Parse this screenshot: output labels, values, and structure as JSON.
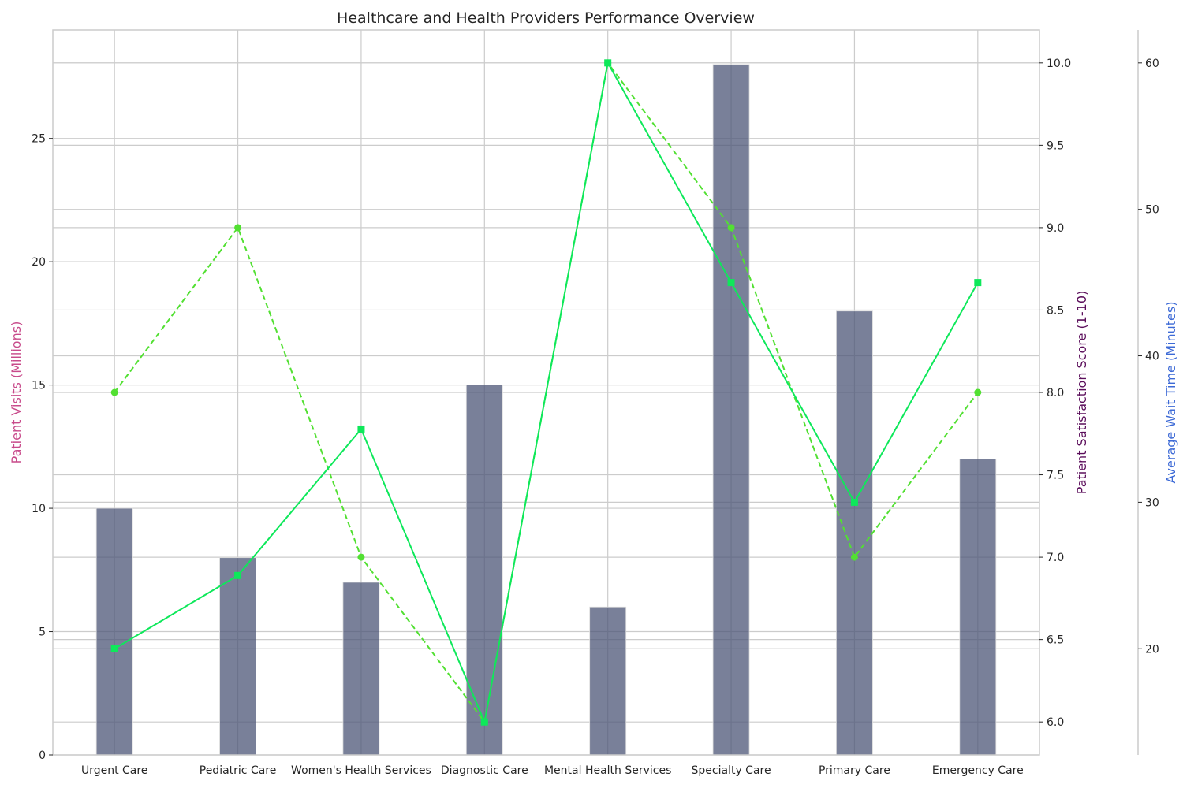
{
  "chart_data": {
    "type": "bar",
    "title": "Healthcare and Health Providers Performance Overview",
    "categories": [
      "Urgent Care",
      "Pediatric Care",
      "Women's Health Services",
      "Diagnostic Care",
      "Mental Health Services",
      "Specialty Care",
      "Primary Care",
      "Emergency Care"
    ],
    "series": [
      {
        "name": "Patient Visits (Millions)",
        "type": "bar",
        "axis": "left",
        "values": [
          10,
          8,
          7,
          15,
          6,
          28,
          18,
          12
        ],
        "color": "#4c5577"
      },
      {
        "name": "Patient Satisfaction Score (1-10)",
        "type": "line",
        "style": "dashed",
        "marker": "circle",
        "axis": "right",
        "values": [
          8.0,
          9.0,
          7.0,
          6.0,
          10.0,
          9.0,
          7.0,
          8.0
        ],
        "color": "#52e032"
      },
      {
        "name": "Average Wait Time (Minutes)",
        "type": "line",
        "style": "solid",
        "marker": "square",
        "axis": "right2",
        "values": [
          20,
          25,
          35,
          15,
          60,
          45,
          30,
          45
        ],
        "color": "#0ee85a"
      }
    ],
    "axes": {
      "left": {
        "label": "Patient Visits (Millions)",
        "range": [
          0,
          29.4
        ],
        "ticks": [
          0,
          5,
          10,
          15,
          20,
          25
        ],
        "color": "#c84b8b"
      },
      "right": {
        "label": "Patient Satisfaction Score (1-10)",
        "range": [
          5.8,
          10.2
        ],
        "ticks": [
          6.0,
          6.5,
          7.0,
          7.5,
          8.0,
          8.5,
          9.0,
          9.5,
          10.0
        ],
        "color": "#5b0e5b"
      },
      "right2": {
        "label": "Average Wait Time (Minutes)",
        "range": [
          12.75,
          62.25
        ],
        "ticks": [
          20,
          30,
          40,
          50,
          60
        ],
        "color": "#3d6ad6"
      }
    },
    "grid": true
  }
}
